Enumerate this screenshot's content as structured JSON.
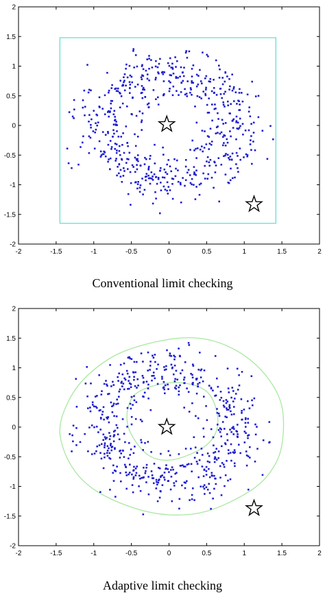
{
  "colors": {
    "points": "#1f1fd0",
    "limit_box": "#66e0d8",
    "adaptive_boundary": "#a8e8a0",
    "axes": "#000000",
    "star_fill": "#ffffff"
  },
  "chart_data": [
    {
      "type": "scatter",
      "caption": "Conventional limit checking",
      "xlim": [
        -2,
        2
      ],
      "ylim": [
        -2,
        2
      ],
      "xticks": [
        "-2",
        "-1.5",
        "-1",
        "-0.5",
        "0",
        "0.5",
        "1",
        "1.5",
        "2"
      ],
      "yticks": [
        "-2",
        "-1.5",
        "-1",
        "-0.5",
        "0",
        "0.5",
        "1",
        "1.5",
        "2"
      ],
      "point_cloud": {
        "shape": "ring",
        "center": [
          0,
          0
        ],
        "inner_radius": 0.45,
        "outer_radius": 1.35,
        "approx_count": 620,
        "marker": "dot"
      },
      "stars": [
        {
          "x": -0.03,
          "y": 0.02
        },
        {
          "x": 1.13,
          "y": -1.33
        }
      ],
      "limit_box": {
        "x": [
          -1.45,
          1.42
        ],
        "y": [
          -1.65,
          1.48
        ]
      },
      "grid": false
    },
    {
      "type": "scatter",
      "caption": "Adaptive limit checking",
      "xlim": [
        -2,
        2
      ],
      "ylim": [
        -2,
        2
      ],
      "xticks": [
        "-2",
        "-1.5",
        "-1",
        "-0.5",
        "0",
        "0.5",
        "1",
        "1.5",
        "2"
      ],
      "yticks": [
        "-2",
        "-1.5",
        "-1",
        "-0.5",
        "0",
        "0.5",
        "1",
        "1.5",
        "2"
      ],
      "point_cloud": {
        "shape": "ring",
        "center": [
          0,
          0
        ],
        "inner_radius": 0.45,
        "outer_radius": 1.35,
        "approx_count": 620,
        "marker": "dot"
      },
      "stars": [
        {
          "x": -0.03,
          "y": 0.0
        },
        {
          "x": 1.13,
          "y": -1.37
        }
      ],
      "outer_boundary": [
        [
          -1.45,
          -0.1
        ],
        [
          -1.35,
          0.4
        ],
        [
          -1.1,
          0.85
        ],
        [
          -0.65,
          1.25
        ],
        [
          0.0,
          1.48
        ],
        [
          0.5,
          1.48
        ],
        [
          0.95,
          1.25
        ],
        [
          1.3,
          0.85
        ],
        [
          1.5,
          0.35
        ],
        [
          1.5,
          -0.3
        ],
        [
          1.35,
          -0.75
        ],
        [
          1.05,
          -1.1
        ],
        [
          0.5,
          -1.42
        ],
        [
          0.0,
          -1.48
        ],
        [
          -0.5,
          -1.35
        ],
        [
          -1.0,
          -1.05
        ],
        [
          -1.3,
          -0.65
        ],
        [
          -1.45,
          -0.1
        ]
      ],
      "inner_boundary": [
        [
          -0.55,
          0.05
        ],
        [
          -0.45,
          0.55
        ],
        [
          0.05,
          0.75
        ],
        [
          0.5,
          0.6
        ],
        [
          0.65,
          0.1
        ],
        [
          0.5,
          -0.3
        ],
        [
          0.05,
          -0.55
        ],
        [
          -0.3,
          -0.45
        ],
        [
          -0.55,
          0.05
        ]
      ],
      "grid": false
    }
  ]
}
